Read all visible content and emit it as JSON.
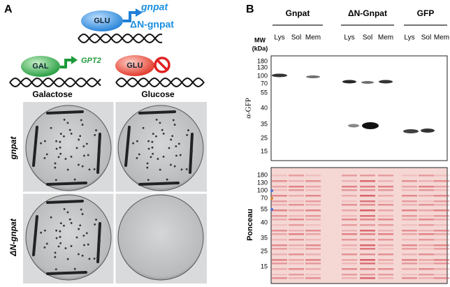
{
  "panel_a": {
    "label": "A",
    "construct_top": {
      "promoter": "GLU",
      "genes": [
        "gnpat",
        "ΔN-gnpat"
      ]
    },
    "construct_left": {
      "promoter": "GAL",
      "gene": "GPT2"
    },
    "construct_right": {
      "promoter": "GLU"
    },
    "columns": [
      "Galactose",
      "Glucose"
    ],
    "rows": [
      "gnpat",
      "ΔN-gnpat"
    ]
  },
  "panel_b": {
    "label": "B",
    "groups": [
      "Gnpat",
      "ΔN-Gnpat",
      "GFP"
    ],
    "lanes": [
      "Lys",
      "Sol",
      "Mem",
      "Lys",
      "Sol",
      "Mem",
      "Lys",
      "Sol",
      "Mem"
    ],
    "mw_title": "MW",
    "mw_unit": "(kDa)",
    "blot_markers": [
      180,
      130,
      100,
      70,
      55,
      40,
      35,
      25,
      15
    ],
    "blot_label": "α-GFP",
    "stain_markers": [
      180,
      130,
      100,
      70,
      55,
      40,
      35,
      25,
      15
    ],
    "stain_label": "Ponceau"
  }
}
